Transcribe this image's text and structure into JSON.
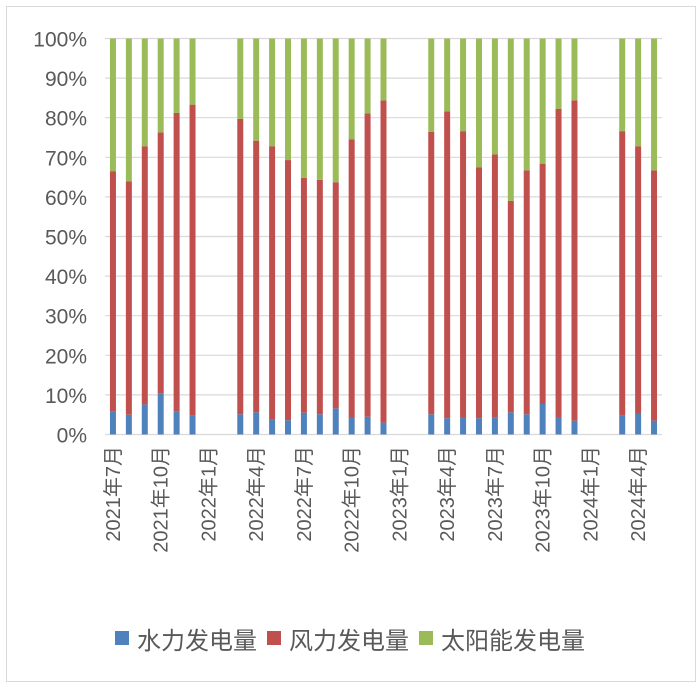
{
  "chart_data": {
    "type": "bar",
    "stacked": true,
    "percent_stacked": true,
    "title": "",
    "xlabel": "",
    "ylabel": "",
    "ylim": [
      0,
      100
    ],
    "yticks": [
      "0%",
      "10%",
      "20%",
      "30%",
      "40%",
      "50%",
      "60%",
      "70%",
      "80%",
      "90%",
      "100%"
    ],
    "grid": true,
    "legend_position": "bottom",
    "x_tick_labels": [
      "2021年7月",
      "2021年10月",
      "2022年1月",
      "2022年4月",
      "2022年7月",
      "2022年10月",
      "2023年1月",
      "2023年4月",
      "2023年7月",
      "2023年10月",
      "2024年1月",
      "2024年4月"
    ],
    "categories": [
      "2021年7月",
      "2021年8月",
      "2021年9月",
      "2021年10月",
      "2021年11月",
      "2021年12月",
      "2022年1月",
      "2022年2月",
      "2022年3月",
      "2022年4月",
      "2022年5月",
      "2022年6月",
      "2022年7月",
      "2022年8月",
      "2022年9月",
      "2022年10月",
      "2022年11月",
      "2022年12月",
      "2023年1月",
      "2023年2月",
      "2023年3月",
      "2023年4月",
      "2023年5月",
      "2023年6月",
      "2023年7月",
      "2023年8月",
      "2023年9月",
      "2023年10月",
      "2023年11月",
      "2023年12月",
      "2024年1月",
      "2024年2月",
      "2024年3月",
      "2024年4月",
      "2024年5月"
    ],
    "series": [
      {
        "name": "水力发电量",
        "color": "#4f81bd",
        "values": [
          5.9,
          5.0,
          7.6,
          10.3,
          5.9,
          4.9,
          null,
          null,
          5.1,
          5.6,
          3.9,
          3.6,
          5.5,
          5.1,
          6.6,
          4.3,
          4.5,
          3.0,
          null,
          null,
          5.1,
          4.1,
          4.3,
          4.1,
          4.4,
          5.6,
          5.1,
          7.7,
          4.3,
          3.5,
          null,
          null,
          4.9,
          5.3,
          3.5
        ]
      },
      {
        "name": "风力发电量",
        "color": "#c0504d",
        "values": [
          60.6,
          58.9,
          65.2,
          66.0,
          75.3,
          78.4,
          null,
          null,
          74.6,
          68.6,
          68.9,
          65.7,
          59.3,
          59.2,
          57.1,
          70.2,
          76.6,
          81.4,
          null,
          null,
          71.3,
          77.5,
          72.3,
          63.4,
          66.3,
          53.4,
          61.6,
          60.7,
          77.9,
          80.9,
          null,
          null,
          71.7,
          67.5,
          63.2
        ]
      },
      {
        "name": "太阳能发电量",
        "color": "#9bbb59",
        "values": [
          33.5,
          36.1,
          27.2,
          23.7,
          18.8,
          16.7,
          null,
          null,
          20.3,
          25.8,
          27.2,
          30.7,
          35.2,
          35.7,
          36.3,
          25.5,
          18.9,
          15.6,
          null,
          null,
          23.6,
          18.4,
          23.4,
          32.5,
          29.3,
          41.0,
          33.3,
          31.6,
          17.8,
          15.6,
          null,
          null,
          23.4,
          27.2,
          33.3
        ]
      }
    ]
  },
  "legend": {
    "items": [
      {
        "label": "水力发电量",
        "color": "#4f81bd"
      },
      {
        "label": "风力发电量",
        "color": "#c0504d"
      },
      {
        "label": "太阳能发电量",
        "color": "#9bbb59"
      }
    ]
  },
  "style": {
    "axis_text_color": "#595959",
    "grid_color": "#d9d9d9"
  }
}
